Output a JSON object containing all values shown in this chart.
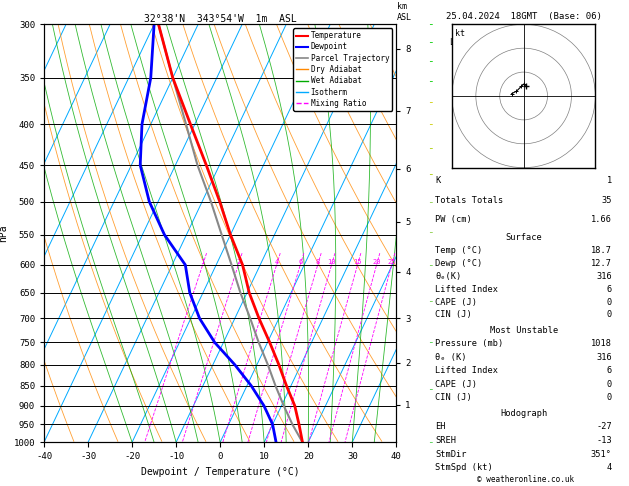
{
  "title_left": "32°38'N  343°54'W  1m  ASL",
  "title_right": "25.04.2024  18GMT  (Base: 06)",
  "xlabel": "Dewpoint / Temperature (°C)",
  "ylabel_left": "hPa",
  "p_levels": [
    300,
    350,
    400,
    450,
    500,
    550,
    600,
    650,
    700,
    750,
    800,
    850,
    900,
    950,
    1000
  ],
  "temp_xlim": [
    -40,
    40
  ],
  "skew_factor": 45,
  "isotherm_color": "#00aaff",
  "dry_adiabat_color": "#ff8800",
  "wet_adiabat_color": "#00aa00",
  "mixing_ratio_color": "#ff00ff",
  "temperature_color": "#ff0000",
  "dewpoint_color": "#0000ff",
  "parcel_color": "#888888",
  "temperature_data": {
    "pressure": [
      1000,
      950,
      900,
      850,
      800,
      750,
      700,
      650,
      600,
      550,
      500,
      450,
      400,
      350,
      300
    ],
    "temp": [
      18.7,
      16.0,
      13.0,
      9.0,
      5.0,
      0.5,
      -4.5,
      -9.5,
      -14.0,
      -20.0,
      -26.0,
      -33.0,
      -41.0,
      -50.0,
      -59.0
    ]
  },
  "dewpoint_data": {
    "pressure": [
      1000,
      950,
      900,
      850,
      800,
      750,
      700,
      650,
      600,
      550,
      500,
      450,
      400,
      350,
      300
    ],
    "temp": [
      12.7,
      10.0,
      6.0,
      1.0,
      -5.0,
      -12.0,
      -18.0,
      -23.0,
      -27.0,
      -35.0,
      -42.0,
      -48.0,
      -52.0,
      -55.0,
      -60.0
    ]
  },
  "parcel_data": {
    "pressure": [
      1000,
      950,
      900,
      850,
      800,
      750,
      700,
      650,
      600,
      550,
      500,
      450,
      400,
      350,
      300
    ],
    "temp": [
      18.7,
      14.5,
      10.5,
      6.5,
      2.5,
      -2.0,
      -6.5,
      -11.5,
      -16.5,
      -22.0,
      -28.0,
      -35.0,
      -42.0,
      -50.0,
      -59.0
    ]
  },
  "lcl_pressure": 950,
  "mixing_ratio_lines": [
    1,
    2,
    4,
    6,
    8,
    10,
    15,
    20,
    25
  ],
  "km_ticks": [
    1,
    2,
    3,
    4,
    5,
    6,
    7,
    8
  ],
  "km_pressures": [
    898,
    795,
    700,
    612,
    530,
    455,
    385,
    322
  ],
  "info_K": "1",
  "info_TT": "35",
  "info_PW": "1.66",
  "info_temp": "18.7",
  "info_dewp": "12.7",
  "info_theta_e": "316",
  "info_li": "6",
  "info_cape": "0",
  "info_cin": "0",
  "info_mu_press": "1018",
  "info_mu_theta": "316",
  "info_mu_li": "6",
  "info_mu_cape": "0",
  "info_mu_cin": "0",
  "info_eh": "-27",
  "info_sreh": "-13",
  "info_stmdir": "351°",
  "info_stmspd": "4",
  "hodo_winds_u": [
    -5,
    -3,
    -1,
    0,
    1
  ],
  "hodo_winds_v": [
    1,
    2,
    4,
    5,
    4
  ]
}
